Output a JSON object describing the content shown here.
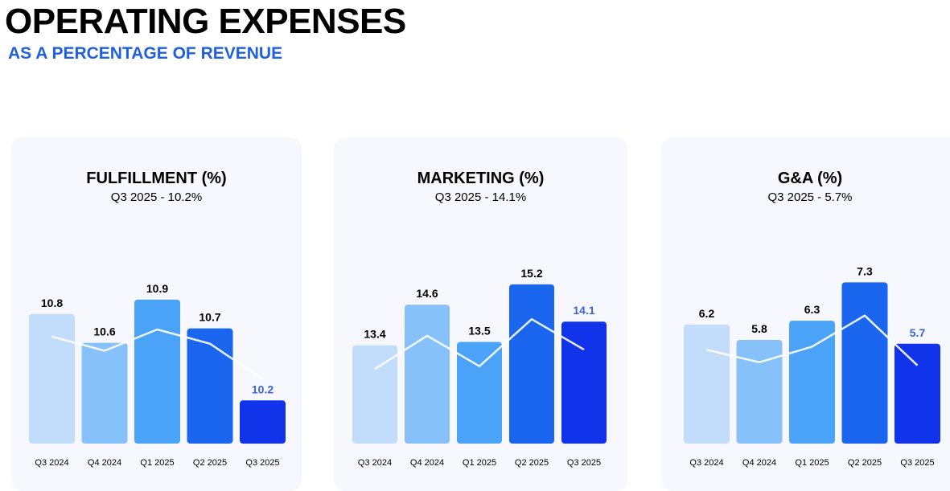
{
  "header": {
    "title": "OPERATING EXPENSES",
    "subtitle": "AS A PERCENTAGE OF REVENUE"
  },
  "colors": [
    "#c2ddfb",
    "#86c1fa",
    "#4aa3f7",
    "#1a66ef",
    "#1133e9"
  ],
  "highlight_color": "#3a63d6",
  "chart_data": [
    {
      "type": "bar",
      "title": "FULFILLMENT (%)",
      "subtitle": "Q3 2025 - 10.2%",
      "categories": [
        "Q3 2024",
        "Q4 2024",
        "Q1 2025",
        "Q2 2025",
        "Q3 2025"
      ],
      "values": [
        10.8,
        10.6,
        10.9,
        10.7,
        10.2
      ],
      "value_labels": [
        "10.8",
        "10.6",
        "10.9",
        "10.7",
        "10.2"
      ],
      "ylim": [
        9.9,
        11.1
      ],
      "overlay_line": true
    },
    {
      "type": "bar",
      "title": "MARKETING (%)",
      "subtitle": "Q3 2025 - 14.1%",
      "categories": [
        "Q3 2024",
        "Q4 2024",
        "Q1 2025",
        "Q2 2025",
        "Q3 2025"
      ],
      "values": [
        13.4,
        14.6,
        13.5,
        15.2,
        14.1
      ],
      "value_labels": [
        "13.4",
        "14.6",
        "13.5",
        "15.2",
        "14.1"
      ],
      "ylim": [
        10.5,
        15.6
      ],
      "overlay_line": true
    },
    {
      "type": "bar",
      "title": "G&A (%)",
      "subtitle": "Q3 2025 - 5.7%",
      "categories": [
        "Q3 2024",
        "Q4 2024",
        "Q1 2025",
        "Q2 2025",
        "Q3 2025"
      ],
      "values": [
        6.2,
        5.8,
        6.3,
        7.3,
        5.7
      ],
      "value_labels": [
        "6.2",
        "5.8",
        "6.3",
        "7.3",
        "5.7"
      ],
      "ylim": [
        3.1,
        7.6
      ],
      "overlay_line": true
    }
  ]
}
